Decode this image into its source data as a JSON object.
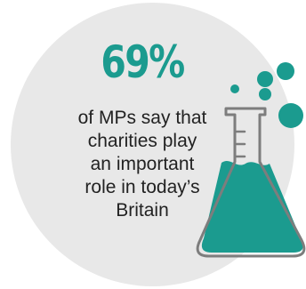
{
  "stat": {
    "value": "69%"
  },
  "description": {
    "lines": [
      "of MPs say that",
      "charities play",
      "an important",
      "role in today’s",
      "Britain"
    ]
  },
  "colors": {
    "accent": "#1b9b8f",
    "circle": "#e8e8e8",
    "text": "#222222",
    "flask_outline": "#7d7d7d"
  },
  "icons": {
    "flask": "flask-icon",
    "bubbles": "bubbles-icon"
  }
}
